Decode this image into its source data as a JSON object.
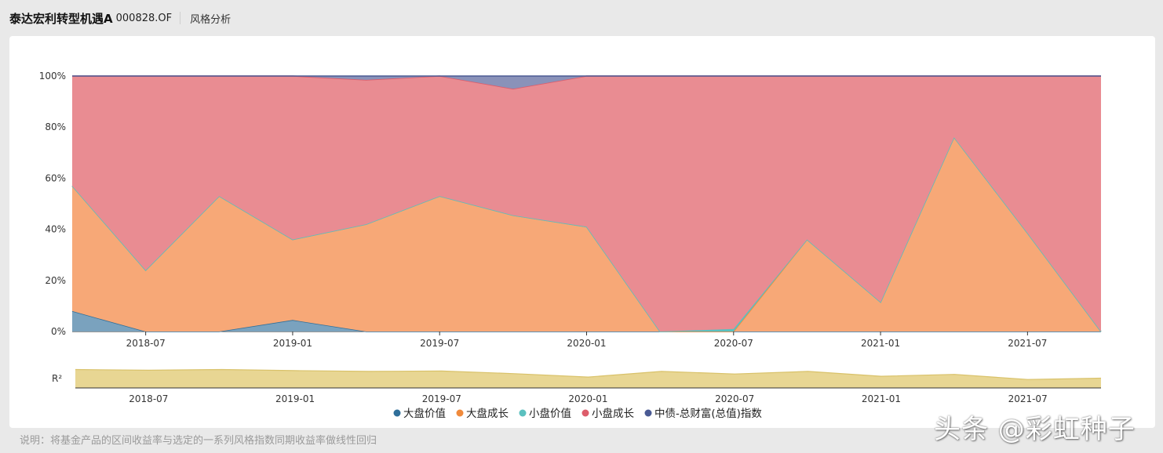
{
  "header": {
    "fund_name": "泰达宏利转型机遇A",
    "fund_code": "000828.OF",
    "tab_label": "风格分析"
  },
  "note": "说明：将基金产品的区间收益率与选定的一系列风格指数同期收益率做线性回归",
  "watermark": "头条 @彩虹种子",
  "chart_data": [
    {
      "type": "area",
      "stacked": true,
      "percent": true,
      "x": [
        "2018-04",
        "2018-07",
        "2018-10",
        "2019-01",
        "2019-04",
        "2019-07",
        "2019-10",
        "2020-01",
        "2020-04",
        "2020-07",
        "2020-10",
        "2021-01",
        "2021-04",
        "2021-07",
        "2021-10"
      ],
      "x_tick_labels": [
        "2018-07",
        "2019-01",
        "2019-07",
        "2020-01",
        "2020-07",
        "2021-01",
        "2021-07"
      ],
      "y_tick_labels": [
        "0%",
        "20%",
        "40%",
        "60%",
        "80%",
        "100%"
      ],
      "ylim": [
        0,
        100
      ],
      "legend_position": "bottom",
      "series": [
        {
          "name": "大盘价值",
          "color": "#2f6f9a",
          "fill": "#7aa2be",
          "values": [
            8,
            0,
            0,
            4.5,
            0,
            0,
            0,
            0,
            0,
            0,
            0,
            0,
            0,
            0,
            0
          ]
        },
        {
          "name": "大盘成长",
          "color": "#f08a3c",
          "fill": "#f7a877",
          "values": [
            49,
            24,
            53,
            31.5,
            42,
            53,
            45.5,
            41,
            0,
            0,
            36,
            11.5,
            76,
            38.5,
            0
          ]
        },
        {
          "name": "小盘价值",
          "color": "#5bc0bf",
          "fill": "#5bc0bf",
          "values": [
            0,
            0,
            0,
            0,
            0,
            0,
            0,
            0,
            0,
            1,
            0,
            0,
            0,
            0,
            0
          ]
        },
        {
          "name": "小盘成长",
          "color": "#dd5d6b",
          "fill": "#e98c92",
          "values": [
            43,
            76,
            47,
            64,
            56.5,
            47,
            49.5,
            59,
            100,
            99,
            64,
            88.5,
            24,
            61.5,
            100
          ]
        },
        {
          "name": "中债-总财富(总值)指数",
          "color": "#4a5a94",
          "fill": "#8a92b9",
          "values": [
            0,
            0,
            0,
            0,
            1.5,
            0,
            5,
            0,
            0,
            0,
            0,
            0,
            0,
            0,
            0
          ]
        }
      ]
    },
    {
      "type": "area",
      "ylabel": "R²",
      "color": "#e8d693",
      "stroke": "#d9c26a",
      "x": [
        "2018-04",
        "2018-07",
        "2018-10",
        "2019-01",
        "2019-04",
        "2019-07",
        "2019-10",
        "2020-01",
        "2020-04",
        "2020-07",
        "2020-10",
        "2021-01",
        "2021-04",
        "2021-07",
        "2021-10"
      ],
      "x_tick_labels": [
        "2018-07",
        "2019-01",
        "2019-07",
        "2020-01",
        "2020-07",
        "2021-01",
        "2021-07"
      ],
      "values": [
        0.98,
        0.94,
        0.98,
        0.92,
        0.88,
        0.9,
        0.76,
        0.58,
        0.88,
        0.74,
        0.88,
        0.62,
        0.72,
        0.45,
        0.52
      ]
    }
  ]
}
